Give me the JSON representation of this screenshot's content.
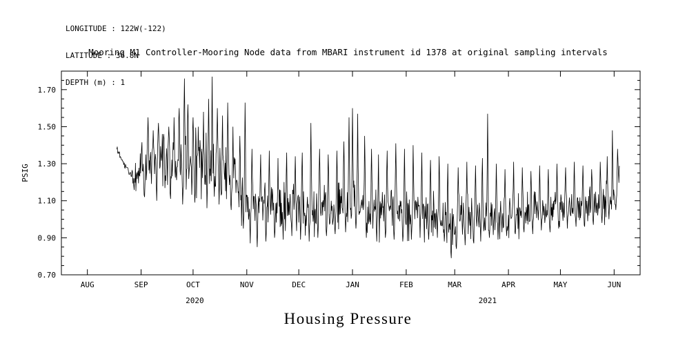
{
  "header": {
    "lines": [
      "LONGITUDE : 122W(-122)",
      "LATITUDE : 36.8N",
      "DEPTH (m) : 1"
    ]
  },
  "footer_title": "Housing Pressure",
  "colors": {
    "foreground": "#000000",
    "background": "#ffffff"
  },
  "chart_data": {
    "type": "line",
    "title": "Mooring M1 Controller-Mooring Node data from MBARI instrument id 1378 at original sampling intervals",
    "xlabel": "",
    "ylabel": "PSIG",
    "ylim": [
      0.7,
      1.8
    ],
    "y_ticks": [
      0.7,
      0.9,
      1.1,
      1.3,
      1.5,
      1.7
    ],
    "y_minor_step": 0.05,
    "x_unit": "days since 2020-08-01",
    "x_range": [
      -15,
      319
    ],
    "x_month_ticks": [
      {
        "day": 0,
        "label": "AUG"
      },
      {
        "day": 31,
        "label": "SEP"
      },
      {
        "day": 61,
        "label": "OCT"
      },
      {
        "day": 92,
        "label": "NOV"
      },
      {
        "day": 122,
        "label": "DEC"
      },
      {
        "day": 153,
        "label": "JAN"
      },
      {
        "day": 184,
        "label": "FEB"
      },
      {
        "day": 212,
        "label": "MAR"
      },
      {
        "day": 243,
        "label": "APR"
      },
      {
        "day": 273,
        "label": "MAY"
      },
      {
        "day": 304,
        "label": "JUN"
      }
    ],
    "year_labels": [
      {
        "text": "2020",
        "day": 62
      },
      {
        "text": "2021",
        "day": 231
      }
    ],
    "grid": false,
    "legend": false,
    "value_range_psig": [
      0.79,
      1.77
    ],
    "series": [
      {
        "name": "Housing Pressure",
        "color": "#000000",
        "start_day": 17,
        "end_day": 307,
        "samples_per_day": 4,
        "seed": 1378,
        "trend": [
          [
            17,
            1.38
          ],
          [
            20,
            1.31
          ],
          [
            24,
            1.26
          ],
          [
            27,
            1.22
          ],
          [
            31,
            1.28
          ],
          [
            38,
            1.31
          ],
          [
            45,
            1.29
          ],
          [
            52,
            1.31
          ],
          [
            59,
            1.28
          ],
          [
            66,
            1.3
          ],
          [
            73,
            1.29
          ],
          [
            80,
            1.26
          ],
          [
            86,
            1.21
          ],
          [
            92,
            1.1
          ],
          [
            97,
            1.06
          ],
          [
            104,
            1.09
          ],
          [
            110,
            1.06
          ],
          [
            116,
            1.08
          ],
          [
            122,
            1.06
          ],
          [
            128,
            1.05
          ],
          [
            134,
            1.06
          ],
          [
            140,
            1.04
          ],
          [
            146,
            1.07
          ],
          [
            152,
            1.1
          ],
          [
            157,
            1.09
          ],
          [
            163,
            1.05
          ],
          [
            170,
            1.03
          ],
          [
            176,
            1.05
          ],
          [
            184,
            1.03
          ],
          [
            190,
            1.04
          ],
          [
            196,
            1.02
          ],
          [
            202,
            1.04
          ],
          [
            208,
            0.99
          ],
          [
            212,
            0.97
          ],
          [
            216,
            1.0
          ],
          [
            222,
            1.02
          ],
          [
            228,
            1.0
          ],
          [
            234,
            1.02
          ],
          [
            240,
            1.01
          ],
          [
            246,
            1.03
          ],
          [
            252,
            1.04
          ],
          [
            258,
            1.03
          ],
          [
            264,
            1.05
          ],
          [
            270,
            1.05
          ],
          [
            276,
            1.06
          ],
          [
            282,
            1.07
          ],
          [
            288,
            1.06
          ],
          [
            294,
            1.08
          ],
          [
            300,
            1.1
          ],
          [
            304,
            1.13
          ],
          [
            307,
            1.2
          ]
        ],
        "volatility": [
          [
            17,
            0.012
          ],
          [
            25,
            0.018
          ],
          [
            30,
            0.07
          ],
          [
            35,
            0.095
          ],
          [
            60,
            0.1
          ],
          [
            85,
            0.1
          ],
          [
            92,
            0.085
          ],
          [
            120,
            0.08
          ],
          [
            150,
            0.085
          ],
          [
            160,
            0.075
          ],
          [
            184,
            0.07
          ],
          [
            212,
            0.075
          ],
          [
            240,
            0.065
          ],
          [
            270,
            0.055
          ],
          [
            295,
            0.06
          ],
          [
            307,
            0.07
          ]
        ],
        "spikes": [
          [
            35,
            1.55
          ],
          [
            38,
            1.48
          ],
          [
            41,
            1.52
          ],
          [
            44,
            1.46
          ],
          [
            47,
            1.5
          ],
          [
            50,
            1.55
          ],
          [
            53,
            1.6
          ],
          [
            56,
            1.76
          ],
          [
            58,
            1.62
          ],
          [
            61,
            1.55
          ],
          [
            64,
            1.5
          ],
          [
            67,
            1.58
          ],
          [
            70,
            1.65
          ],
          [
            72,
            1.77
          ],
          [
            75,
            1.6
          ],
          [
            78,
            1.56
          ],
          [
            81,
            1.63
          ],
          [
            84,
            1.5
          ],
          [
            88,
            1.45
          ],
          [
            91,
            1.63
          ],
          [
            95,
            1.38
          ],
          [
            100,
            1.35
          ],
          [
            105,
            1.37
          ],
          [
            110,
            1.33
          ],
          [
            115,
            1.36
          ],
          [
            120,
            1.34
          ],
          [
            124,
            1.36
          ],
          [
            129,
            1.52
          ],
          [
            134,
            1.38
          ],
          [
            139,
            1.35
          ],
          [
            144,
            1.37
          ],
          [
            148,
            1.42
          ],
          [
            151,
            1.55
          ],
          [
            153,
            1.6
          ],
          [
            156,
            1.57
          ],
          [
            160,
            1.45
          ],
          [
            164,
            1.38
          ],
          [
            168,
            1.35
          ],
          [
            173,
            1.37
          ],
          [
            178,
            1.41
          ],
          [
            183,
            1.38
          ],
          [
            188,
            1.4
          ],
          [
            193,
            1.36
          ],
          [
            198,
            1.32
          ],
          [
            203,
            1.34
          ],
          [
            208,
            1.3
          ],
          [
            214,
            1.28
          ],
          [
            219,
            1.31
          ],
          [
            224,
            1.29
          ],
          [
            228,
            1.33
          ],
          [
            231,
            1.57
          ],
          [
            236,
            1.3
          ],
          [
            241,
            1.27
          ],
          [
            246,
            1.31
          ],
          [
            251,
            1.28
          ],
          [
            256,
            1.26
          ],
          [
            261,
            1.29
          ],
          [
            266,
            1.27
          ],
          [
            271,
            1.3
          ],
          [
            276,
            1.28
          ],
          [
            281,
            1.31
          ],
          [
            286,
            1.29
          ],
          [
            291,
            1.27
          ],
          [
            296,
            1.31
          ],
          [
            300,
            1.34
          ],
          [
            303,
            1.48
          ],
          [
            306,
            1.38
          ]
        ],
        "dips": [
          [
            33,
            1.12
          ],
          [
            40,
            1.1
          ],
          [
            48,
            1.11
          ],
          [
            55,
            1.08
          ],
          [
            62,
            1.09
          ],
          [
            69,
            1.06
          ],
          [
            76,
            1.08
          ],
          [
            83,
            1.05
          ],
          [
            90,
            0.95
          ],
          [
            94,
            0.87
          ],
          [
            98,
            0.85
          ],
          [
            103,
            0.88
          ],
          [
            108,
            0.9
          ],
          [
            113,
            0.89
          ],
          [
            118,
            0.91
          ],
          [
            123,
            0.89
          ],
          [
            128,
            0.88
          ],
          [
            133,
            0.9
          ],
          [
            138,
            0.91
          ],
          [
            143,
            0.92
          ],
          [
            149,
            0.93
          ],
          [
            155,
            0.95
          ],
          [
            161,
            0.9
          ],
          [
            167,
            0.88
          ],
          [
            172,
            0.9
          ],
          [
            177,
            0.89
          ],
          [
            182,
            0.88
          ],
          [
            187,
            0.89
          ],
          [
            192,
            0.9
          ],
          [
            197,
            0.89
          ],
          [
            202,
            0.9
          ],
          [
            206,
            0.88
          ],
          [
            210,
            0.79
          ],
          [
            213,
            0.84
          ],
          [
            218,
            0.86
          ],
          [
            223,
            0.87
          ],
          [
            227,
            0.88
          ],
          [
            232,
            0.9
          ],
          [
            237,
            0.89
          ],
          [
            242,
            0.91
          ],
          [
            247,
            0.92
          ],
          [
            252,
            0.93
          ],
          [
            257,
            0.92
          ],
          [
            262,
            0.94
          ],
          [
            267,
            0.93
          ],
          [
            272,
            0.95
          ],
          [
            277,
            0.95
          ],
          [
            282,
            0.96
          ],
          [
            287,
            0.96
          ],
          [
            292,
            0.97
          ],
          [
            297,
            0.98
          ],
          [
            301,
            1.0
          ],
          [
            305,
            1.05
          ]
        ]
      }
    ]
  }
}
